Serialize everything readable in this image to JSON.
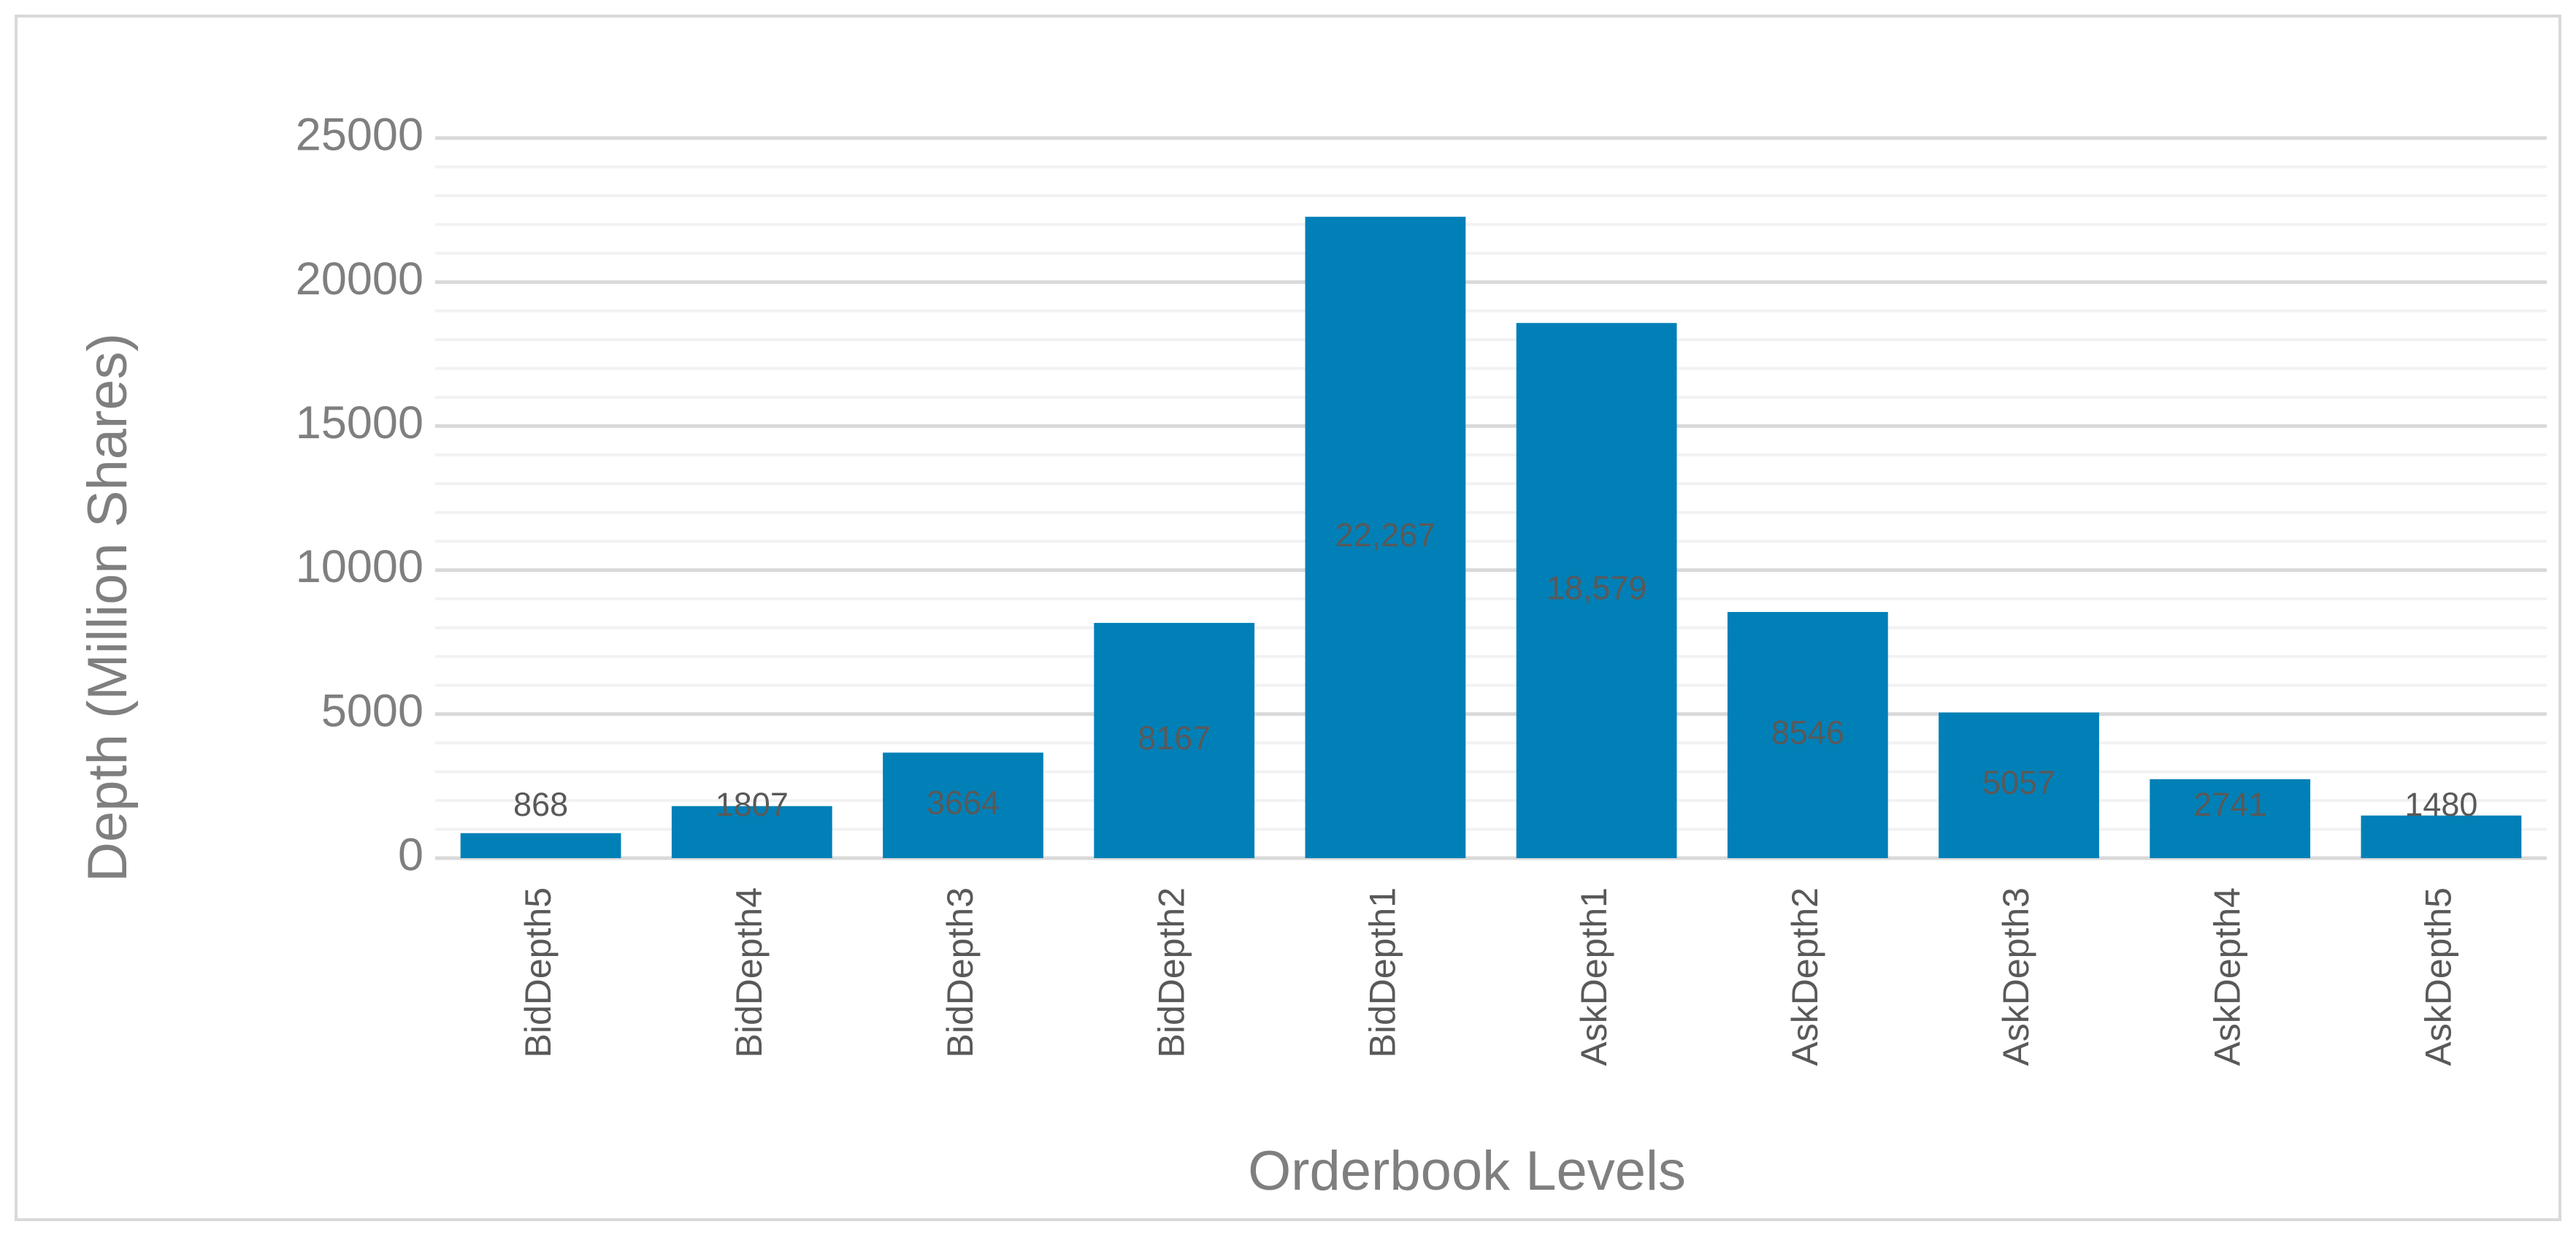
{
  "chart_data": {
    "type": "bar",
    "x_label": "Orderbook Levels",
    "y_label": "Depth (Million Shares)",
    "categories": [
      "BidDepth5",
      "BidDepth4",
      "BidDepth3",
      "BidDepth2",
      "BidDepth1",
      "AskDepth1",
      "AskDepth2",
      "AskDepth3",
      "AskDepth4",
      "AskDepth5"
    ],
    "values": [
      868,
      1807,
      3664,
      8167,
      22267,
      18579,
      8546,
      5057,
      2741,
      1480
    ],
    "value_labels": [
      "868",
      "1807",
      "3664",
      "8167",
      "22,267",
      "18,579",
      "8546",
      "5057",
      "2741",
      "1480"
    ],
    "color": "#0080b7",
    "ylim": [
      0,
      25000
    ],
    "yticks": [
      0,
      5000,
      10000,
      15000,
      20000,
      25000
    ],
    "grid": true,
    "minor_grid": true
  }
}
